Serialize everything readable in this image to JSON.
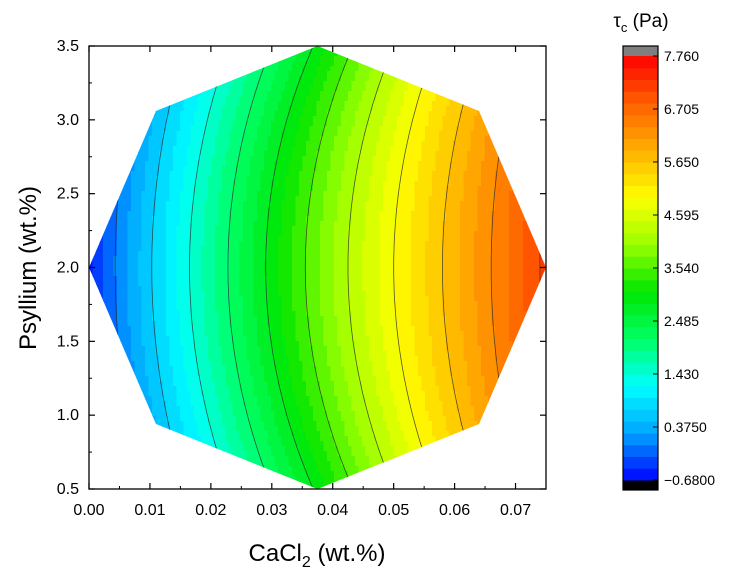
{
  "chart_data": {
    "type": "heatmap",
    "subtype": "filled-contour",
    "title": "",
    "xlabel": {
      "main": "CaCl",
      "sub": "2",
      "rest": " (wt.%)"
    },
    "ylabel": "Psyllium (wt.%)",
    "xlim": [
      0.0,
      0.075
    ],
    "ylim": [
      0.5,
      3.5
    ],
    "xticks": [
      "0.00",
      "0.01",
      "0.02",
      "0.03",
      "0.04",
      "0.05",
      "0.06",
      "0.07"
    ],
    "yticks": [
      "0.5",
      "1.0",
      "1.5",
      "2.0",
      "2.5",
      "3.0",
      "3.5"
    ],
    "grid": false,
    "domain_polygon": [
      [
        0.0,
        2.0
      ],
      [
        0.011,
        0.94
      ],
      [
        0.0375,
        0.5
      ],
      [
        0.064,
        0.94
      ],
      [
        0.075,
        2.0
      ],
      [
        0.064,
        3.06
      ],
      [
        0.0375,
        3.5
      ],
      [
        0.011,
        3.06
      ]
    ],
    "surface": {
      "description": "tau_c rises with CaCl2; minimum near CaCl2=0 at Psyllium=2.0",
      "min_value": -0.68,
      "max_value": 7.76,
      "min_location": [
        0.003,
        2.0
      ],
      "contour_x_at_y2": [
        0.0043,
        0.0103,
        0.0165,
        0.0228,
        0.029,
        0.0355,
        0.0425,
        0.05,
        0.058,
        0.066,
        0.074
      ],
      "contour_bow_x": [
        0.0043,
        0.0055,
        0.0066,
        0.0072,
        0.0078,
        0.0078,
        0.0075,
        0.007,
        0.0063,
        0.005,
        0.004
      ]
    },
    "contour_line_color": "#2b2b2b",
    "colorbar": {
      "title_main": "τ",
      "title_sub": "c",
      "title_rest": " (Pa)",
      "tick_labels": [
        "7.760",
        "6.705",
        "5.650",
        "4.595",
        "3.540",
        "2.485",
        "1.430",
        "0.3750",
        "−0.6800"
      ],
      "tick_values": [
        7.76,
        6.705,
        5.65,
        4.595,
        3.54,
        2.485,
        1.43,
        0.375,
        -0.68
      ],
      "levels": 36,
      "over_color": "#7f7f7f",
      "under_color": "#000000",
      "colormap": [
        "#0000ff",
        "#00a5ff",
        "#00ffff",
        "#00ff66",
        "#00e600",
        "#99ff00",
        "#ffff00",
        "#ffb000",
        "#ff6000",
        "#ff0000"
      ]
    }
  }
}
